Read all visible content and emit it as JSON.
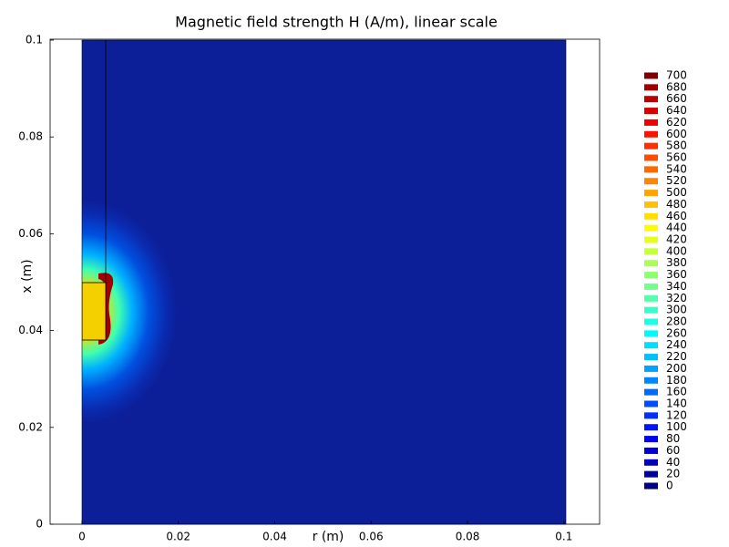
{
  "chart_data": {
    "type": "contour",
    "title": "Magnetic field strength H (A/m), linear scale",
    "xlabel": "r (m)",
    "ylabel": "x (m)",
    "xlim": [
      -0.0066,
      0.1074
    ],
    "ylim": [
      0,
      0.1
    ],
    "xticks": [
      0,
      0.02,
      0.04,
      0.06,
      0.08,
      0.1
    ],
    "yticks": [
      0,
      0.02,
      0.04,
      0.06,
      0.08,
      0.1
    ],
    "colormap": "jet",
    "colorbar": {
      "ticks": [
        0,
        20,
        40,
        60,
        80,
        100,
        120,
        140,
        160,
        180,
        200,
        220,
        240,
        260,
        280,
        300,
        320,
        340,
        360,
        380,
        400,
        420,
        440,
        460,
        480,
        500,
        520,
        540,
        560,
        580,
        600,
        620,
        640,
        660,
        680,
        700
      ]
    }
  }
}
